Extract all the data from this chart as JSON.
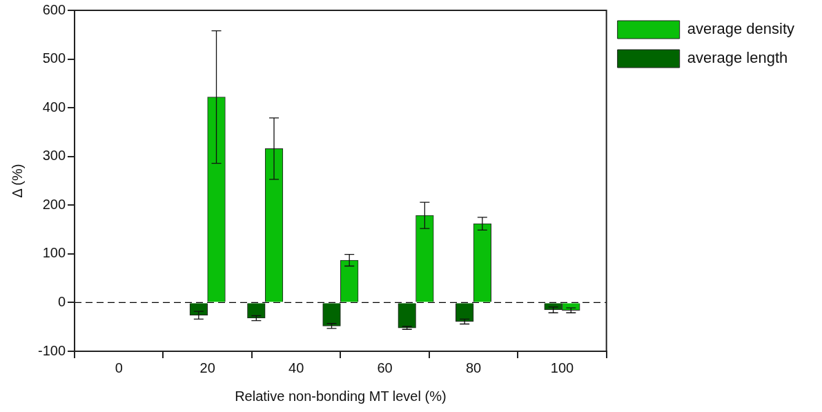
{
  "chart_data": {
    "type": "bar",
    "xlabel": "Relative non-bonding MT level (%)",
    "ylabel": "Δ (%)",
    "xlim": [
      -10,
      110
    ],
    "xticks": [
      0,
      20,
      40,
      60,
      80,
      100
    ],
    "ylim": [
      -100,
      600
    ],
    "yticks": [
      -100,
      0,
      100,
      200,
      300,
      400,
      500,
      600
    ],
    "grid": false,
    "legend": "right",
    "ref_lines": [
      {
        "axis": "y",
        "value": 0,
        "line_style": "dashed",
        "color": "#000000"
      }
    ],
    "series": [
      {
        "name": "average density",
        "color": "#0abf0a",
        "x": [
          22,
          35,
          52,
          69,
          82,
          102
        ],
        "values": [
          422,
          316,
          87,
          179,
          162,
          -16
        ],
        "errors": [
          136,
          63,
          12,
          27,
          13,
          5
        ]
      },
      {
        "name": "average length",
        "color": "#006400",
        "x": [
          18,
          31,
          48,
          65,
          78,
          98
        ],
        "values": [
          -26,
          -32,
          -48,
          -52,
          -39,
          -15
        ],
        "errors": [
          8,
          5,
          5,
          3,
          5,
          6
        ]
      }
    ]
  }
}
